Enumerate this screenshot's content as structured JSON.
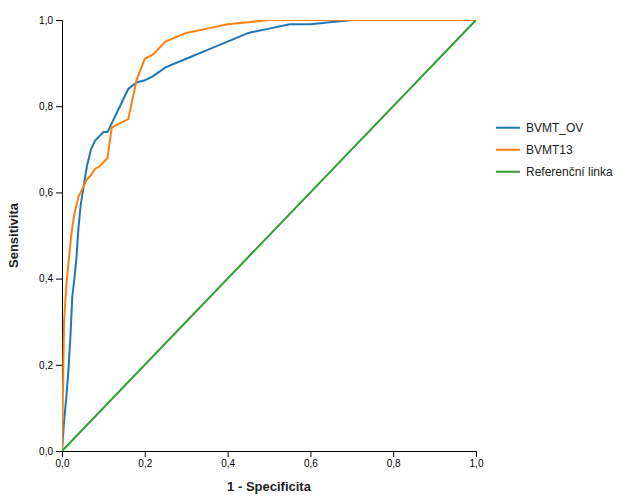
{
  "chart_data": {
    "type": "line",
    "xlabel": "1 - Specificita",
    "ylabel": "Sensitivita",
    "xlim": [
      0.0,
      1.0
    ],
    "ylim": [
      0.0,
      1.0
    ],
    "xticks": [
      {
        "value": 0.0,
        "label": "0,0"
      },
      {
        "value": 0.2,
        "label": "0,2"
      },
      {
        "value": 0.4,
        "label": "0,4"
      },
      {
        "value": 0.6,
        "label": "0,6"
      },
      {
        "value": 0.8,
        "label": "0,8"
      },
      {
        "value": 1.0,
        "label": "1,0"
      }
    ],
    "yticks": [
      {
        "value": 0.0,
        "label": "0,0"
      },
      {
        "value": 0.2,
        "label": "0,2"
      },
      {
        "value": 0.4,
        "label": "0,4"
      },
      {
        "value": 0.6,
        "label": "0,6"
      },
      {
        "value": 0.8,
        "label": "0,8"
      },
      {
        "value": 1.0,
        "label": "1,0"
      }
    ],
    "grid": false,
    "legend": "right",
    "series": [
      {
        "name": "BVMT_OV",
        "x": [
          0.0,
          0.005,
          0.01,
          0.015,
          0.02,
          0.025,
          0.03,
          0.035,
          0.04,
          0.045,
          0.05,
          0.055,
          0.06,
          0.07,
          0.08,
          0.09,
          0.1,
          0.11,
          0.12,
          0.14,
          0.16,
          0.18,
          0.2,
          0.22,
          0.25,
          0.3,
          0.35,
          0.4,
          0.45,
          0.5,
          0.55,
          0.6,
          0.7,
          0.8,
          0.9,
          1.0
        ],
        "values": [
          0.0,
          0.07,
          0.12,
          0.18,
          0.26,
          0.36,
          0.4,
          0.45,
          0.52,
          0.57,
          0.6,
          0.63,
          0.66,
          0.7,
          0.72,
          0.73,
          0.74,
          0.74,
          0.76,
          0.8,
          0.84,
          0.855,
          0.86,
          0.87,
          0.89,
          0.91,
          0.93,
          0.95,
          0.97,
          0.98,
          0.99,
          0.99,
          1.0,
          1.0,
          1.0,
          1.0
        ]
      },
      {
        "name": "BVMT13",
        "x": [
          0.0,
          0.005,
          0.01,
          0.015,
          0.02,
          0.025,
          0.03,
          0.035,
          0.04,
          0.045,
          0.05,
          0.055,
          0.06,
          0.07,
          0.08,
          0.09,
          0.1,
          0.11,
          0.12,
          0.14,
          0.16,
          0.18,
          0.2,
          0.22,
          0.25,
          0.3,
          0.35,
          0.4,
          0.45,
          0.5,
          0.55,
          0.6,
          0.7,
          0.8,
          0.9,
          1.0
        ],
        "values": [
          0.0,
          0.3,
          0.38,
          0.43,
          0.48,
          0.52,
          0.55,
          0.57,
          0.59,
          0.6,
          0.61,
          0.62,
          0.63,
          0.64,
          0.655,
          0.66,
          0.67,
          0.68,
          0.75,
          0.76,
          0.77,
          0.86,
          0.91,
          0.92,
          0.95,
          0.97,
          0.98,
          0.99,
          0.995,
          1.0,
          1.0,
          1.0,
          1.0,
          1.0,
          1.0,
          1.0
        ]
      },
      {
        "name": "Referenční linka",
        "x": [
          0,
          1
        ],
        "values": [
          0,
          1
        ]
      }
    ]
  }
}
